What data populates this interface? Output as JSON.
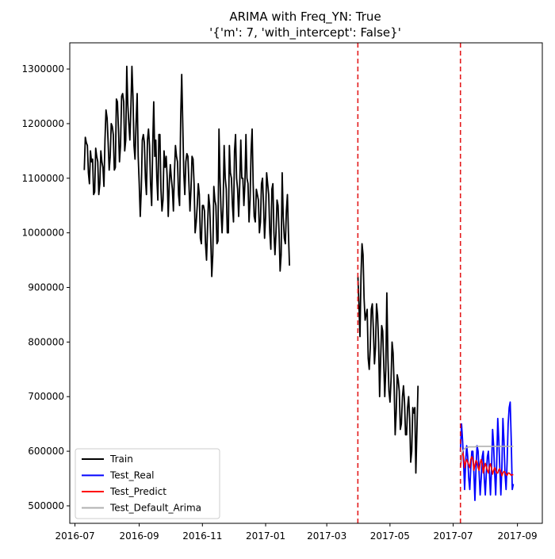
{
  "chart_data": {
    "type": "line",
    "title": "ARIMA with Freq_YN: True",
    "subtitle": "'{'m': 7, 'with_intercept': False}'",
    "xlabel": "",
    "ylabel": "",
    "x_range": [
      "2016-06-26",
      "2017-09-25"
    ],
    "ylim": [
      468000,
      1348000
    ],
    "grid": false,
    "legend_placement": "lower-left",
    "x_ticks": [
      {
        "date": "2016-07-01",
        "label": "2016-07"
      },
      {
        "date": "2016-09-01",
        "label": "2016-09"
      },
      {
        "date": "2016-11-01",
        "label": "2016-11"
      },
      {
        "date": "2017-01-01",
        "label": "2017-01"
      },
      {
        "date": "2017-03-01",
        "label": "2017-03"
      },
      {
        "date": "2017-05-01",
        "label": "2017-05"
      },
      {
        "date": "2017-07-01",
        "label": "2017-07"
      },
      {
        "date": "2017-09-01",
        "label": "2017-09"
      }
    ],
    "y_ticks": [
      {
        "value": 500000,
        "label": "500000"
      },
      {
        "value": 600000,
        "label": "600000"
      },
      {
        "value": 700000,
        "label": "700000"
      },
      {
        "value": 800000,
        "label": "800000"
      },
      {
        "value": 900000,
        "label": "900000"
      },
      {
        "value": 1000000,
        "label": "1000000"
      },
      {
        "value": 1100000,
        "label": "1100000"
      },
      {
        "value": 1200000,
        "label": "1200000"
      },
      {
        "value": 1300000,
        "label": "1300000"
      }
    ],
    "vlines": [
      {
        "date": "2017-03-31",
        "color": "#e41a1c",
        "style": "dashed"
      },
      {
        "date": "2017-07-08",
        "color": "#e41a1c",
        "style": "dashed"
      }
    ],
    "series": [
      {
        "name": "Train",
        "color": "#000000",
        "start_date": "2016-07-10",
        "values": [
          1115000,
          1175000,
          1165000,
          1160000,
          1110000,
          1090000,
          1150000,
          1130000,
          1135000,
          1070000,
          1075000,
          1155000,
          1140000,
          1130000,
          1070000,
          1090000,
          1150000,
          1130000,
          1120000,
          1085000,
          1170000,
          1225000,
          1210000,
          1165000,
          1115000,
          1140000,
          1200000,
          1195000,
          1180000,
          1115000,
          1120000,
          1245000,
          1240000,
          1190000,
          1130000,
          1160000,
          1250000,
          1255000,
          1240000,
          1150000,
          1170000,
          1305000,
          1235000,
          1200000,
          1170000,
          1230000,
          1305000,
          1250000,
          1160000,
          1135000,
          1200000,
          1255000,
          1140000,
          1090000,
          1030000,
          1080000,
          1170000,
          1180000,
          1165000,
          1100000,
          1070000,
          1170000,
          1190000,
          1160000,
          1090000,
          1050000,
          1160000,
          1240000,
          1140000,
          1170000,
          1100000,
          1060000,
          1180000,
          1180000,
          1080000,
          1040000,
          1060000,
          1150000,
          1120000,
          1140000,
          1100000,
          1030000,
          1090000,
          1125000,
          1100000,
          1080000,
          1040000,
          1110000,
          1160000,
          1140000,
          1130000,
          1070000,
          1050000,
          1210000,
          1290000,
          1200000,
          1110000,
          1070000,
          1130000,
          1145000,
          1140000,
          1090000,
          1040000,
          1080000,
          1140000,
          1135000,
          1090000,
          1000000,
          1020000,
          1050000,
          1090000,
          1070000,
          990000,
          980000,
          1050000,
          1050000,
          1040000,
          980000,
          950000,
          1010000,
          1070000,
          1050000,
          990000,
          920000,
          960000,
          1085000,
          1060000,
          1050000,
          980000,
          985000,
          1190000,
          1100000,
          1040000,
          1000000,
          1050000,
          1160000,
          1100000,
          1080000,
          1000000,
          1000000,
          1160000,
          1110000,
          1100000,
          1050000,
          1020000,
          1150000,
          1180000,
          1100000,
          1080000,
          1030000,
          1090000,
          1170000,
          1100000,
          1100000,
          1050000,
          1090000,
          1180000,
          1100000,
          1090000,
          1020000,
          1060000,
          1150000,
          1190000,
          1090000,
          1030000,
          1020000,
          1080000,
          1070000,
          1060000,
          1000000,
          1020000,
          1090000,
          1100000,
          1050000,
          990000,
          1030000,
          1110000,
          1090000,
          1070000,
          1000000,
          970000,
          1080000,
          1090000,
          1000000,
          960000,
          1000000,
          1060000,
          1050000,
          1000000,
          930000,
          960000,
          1110000,
          1030000,
          990000,
          980000,
          1040000,
          1070000,
          1000000,
          940000
        ],
        "width": 1.8
      },
      {
        "name": "Train",
        "color": "#000000",
        "start_date": "2017-03-31",
        "values": [
          920000,
          870000,
          810000,
          920000,
          980000,
          960000,
          880000,
          840000,
          850000,
          860000,
          770000,
          750000,
          790000,
          860000,
          870000,
          820000,
          760000,
          790000,
          870000,
          850000,
          800000,
          700000,
          770000,
          830000,
          820000,
          760000,
          700000,
          750000,
          890000,
          770000,
          710000,
          690000,
          730000,
          800000,
          780000,
          720000,
          630000,
          670000,
          740000,
          730000,
          710000,
          640000,
          650000,
          700000,
          720000,
          690000,
          630000,
          630000,
          680000,
          700000,
          660000,
          580000,
          600000,
          680000,
          670000,
          680000,
          560000,
          640000,
          720000
        ],
        "width": 1.8
      },
      {
        "name": "Test_Real",
        "color": "#0000ff",
        "start_date": "2017-07-08",
        "values": [
          600000,
          650000,
          620000,
          580000,
          530000,
          580000,
          610000,
          590000,
          550000,
          530000,
          570000,
          600000,
          600000,
          560000,
          510000,
          570000,
          610000,
          600000,
          560000,
          520000,
          550000,
          590000,
          600000,
          550000,
          520000,
          560000,
          590000,
          600000,
          560000,
          520000,
          570000,
          640000,
          610000,
          560000,
          520000,
          580000,
          660000,
          620000,
          570000,
          520000,
          570000,
          660000,
          620000,
          560000,
          530000,
          580000,
          650000,
          680000,
          690000,
          620000,
          530000,
          540000
        ],
        "width": 1.8
      },
      {
        "name": "Test_Predict",
        "color": "#ff0000",
        "start_date": "2017-07-08",
        "values": [
          570000,
          590000,
          600000,
          590000,
          570000,
          580000,
          585000,
          580000,
          575000,
          570000,
          585000,
          590000,
          585000,
          565000,
          575000,
          583000,
          580000,
          570000,
          565000,
          578000,
          585000,
          578000,
          560000,
          570000,
          578000,
          572000,
          565000,
          560000,
          572000,
          577000,
          568000,
          558000,
          565000,
          570000,
          566000,
          560000,
          560000,
          566000,
          568000,
          562000,
          555000,
          560000,
          563000,
          562000,
          557000,
          556000,
          560000,
          560000,
          558000,
          556000,
          557000,
          557000
        ],
        "width": 1.6
      },
      {
        "name": "Test_Default_Arima",
        "color": "#b0b0b0",
        "start_date": "2017-07-08",
        "values": [
          580000,
          595000,
          600000,
          603000,
          605000,
          606000,
          607000,
          607000,
          608000,
          608000,
          608000,
          608000,
          608000,
          608000,
          608000,
          609000,
          609000,
          609000,
          609000,
          609000,
          609000,
          609000,
          609000,
          609000,
          609000,
          609000,
          609000,
          609000,
          609000,
          609000,
          609000,
          609000,
          609000,
          609000,
          609000,
          609000,
          609000,
          609000,
          609000,
          609000,
          609000,
          609000,
          609000,
          609000,
          609000,
          609000,
          609000,
          609000,
          609000,
          609000,
          609000,
          609000
        ],
        "width": 1.6
      }
    ],
    "legend": [
      "Train",
      "Test_Real",
      "Test_Predict",
      "Test_Default_Arima"
    ]
  }
}
